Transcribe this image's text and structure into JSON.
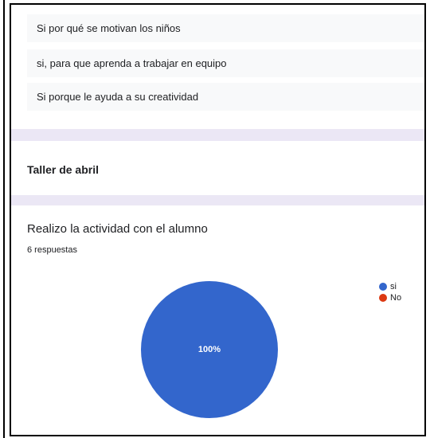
{
  "responses": [
    "Si por qué se motivan los niños",
    "si, para que aprenda a trabajar en equipo",
    "Si porque le ayuda a su creatividad"
  ],
  "section": {
    "title": "Taller de abril"
  },
  "chart_data": {
    "type": "pie",
    "title": "Realizo la actividad con el alumno",
    "subtitle": "6 respuestas",
    "categories": [
      "si",
      "No"
    ],
    "values": [
      100,
      0
    ],
    "value_labels": [
      "100%",
      null
    ],
    "colors": [
      "#3366cc",
      "#dc3912"
    ],
    "legend": "right"
  }
}
